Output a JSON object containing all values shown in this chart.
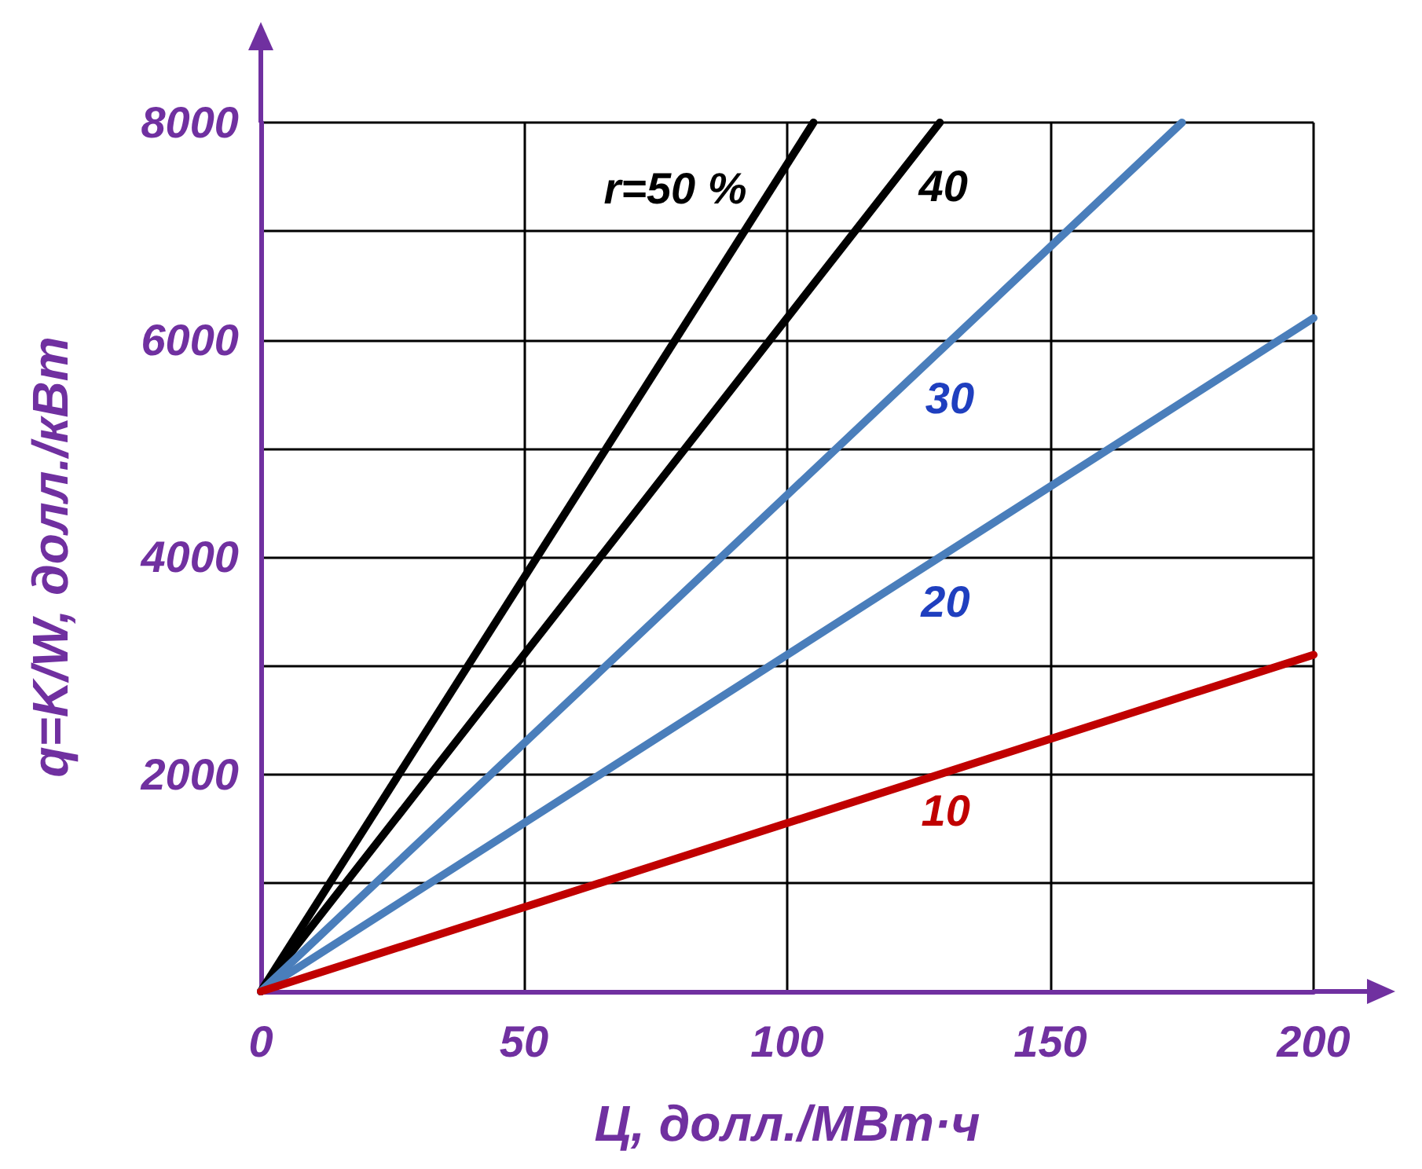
{
  "chart_data": {
    "type": "line",
    "xlabel": "Ц, долл./МВт·ч",
    "ylabel": "q=K/W, долл./кВт",
    "series": [
      {
        "color": "#000000",
        "x": [
          0,
          105
        ],
        "values": [
          0,
          8000
        ]
      },
      {
        "color": "#000000",
        "x": [
          0,
          129
        ],
        "values": [
          0,
          8000
        ]
      },
      {
        "color": "#4a7ebb",
        "x": [
          0,
          175
        ],
        "values": [
          0,
          8000
        ]
      },
      {
        "color": "#4a7ebb",
        "x": [
          0,
          200
        ],
        "values": [
          0,
          6200
        ]
      },
      {
        "color": "#c00000",
        "x": [
          0,
          200
        ],
        "values": [
          0,
          3100
        ]
      }
    ],
    "annotations": [
      {
        "text": "r=50 %",
        "x": 91.8,
        "y": 6990
      },
      {
        "text": "40",
        "x": 123.4,
        "y": 7650
      },
      {
        "text": "30",
        "x": 125.5,
        "y": 5740
      },
      {
        "text": "20",
        "x": 126,
        "y": 3900
      },
      {
        "text": "10",
        "x": 128,
        "y": 1980
      }
    ],
    "xlim": [
      0,
      200
    ],
    "xticks": [
      0,
      50,
      100,
      150,
      200
    ],
    "ylim": [
      0,
      8000
    ],
    "yticks": [
      {
        "value": 0,
        "label": null
      },
      {
        "value": 1000,
        "label": null
      },
      2000,
      {
        "value": 3000,
        "label": null
      },
      4000,
      {
        "value": 5000,
        "label": null
      },
      6000,
      {
        "value": 7000,
        "label": null
      },
      8000
    ],
    "grid": true,
    "marker": "none",
    "line_style": "solid"
  }
}
